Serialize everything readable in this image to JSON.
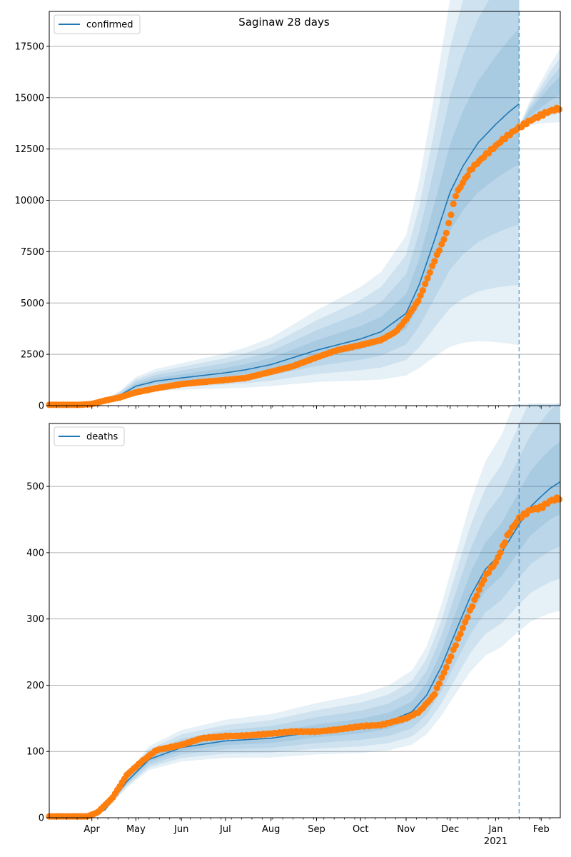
{
  "title": "Saginaw 28 days",
  "colors": {
    "model": "#1f77b4",
    "band": "#1f77b4",
    "observed": "#ff7f0e",
    "grid": "#b0b0b0",
    "forecast_line": "#1f77b4"
  },
  "x_axis": {
    "month_ticks": [
      {
        "date": "2020-04-01",
        "label": "Apr"
      },
      {
        "date": "2020-05-01",
        "label": "May"
      },
      {
        "date": "2020-06-01",
        "label": "Jun"
      },
      {
        "date": "2020-07-01",
        "label": "Jul"
      },
      {
        "date": "2020-08-01",
        "label": "Aug"
      },
      {
        "date": "2020-09-01",
        "label": "Sep"
      },
      {
        "date": "2020-10-01",
        "label": "Oct"
      },
      {
        "date": "2020-11-01",
        "label": "Nov"
      },
      {
        "date": "2020-12-01",
        "label": "Dec"
      },
      {
        "date": "2021-01-01",
        "label": "Jan",
        "sublabel": "2021"
      },
      {
        "date": "2021-02-01",
        "label": "Feb"
      }
    ],
    "minor_ticks": "weekly"
  },
  "chart_data": [
    {
      "type": "line",
      "legend": "confirmed",
      "legend_position": "top-left",
      "grid": "y",
      "xlim": [
        "2020-03-03",
        "2021-02-14"
      ],
      "ylim": [
        0,
        19200
      ],
      "yticks": [
        0,
        2500,
        5000,
        7500,
        10000,
        12500,
        15000,
        17500
      ],
      "ytick_labels": [
        "0",
        "2500",
        "5000",
        "7500",
        "10000",
        "12500",
        "15000",
        "17500"
      ],
      "forecast_date": "2021-01-17",
      "model": {
        "x": [
          "2020-03-03",
          "2020-03-24",
          "2020-04-05",
          "2020-04-20",
          "2020-05-01",
          "2020-05-15",
          "2020-06-01",
          "2020-07-01",
          "2020-07-15",
          "2020-08-01",
          "2020-09-01",
          "2020-10-01",
          "2020-10-15",
          "2020-11-01",
          "2020-11-10",
          "2020-11-20",
          "2020-12-01",
          "2020-12-10",
          "2020-12-20",
          "2021-01-01",
          "2021-01-10",
          "2021-01-17"
        ],
        "y": [
          0,
          0,
          60,
          500,
          950,
          1200,
          1350,
          1600,
          1750,
          2000,
          2700,
          3250,
          3600,
          4500,
          5900,
          8000,
          10400,
          11700,
          12800,
          13700,
          14300,
          14700
        ],
        "band_widths": [
          0.25,
          0.5,
          0.75,
          1.0
        ]
      },
      "forecast_band": {
        "x": [
          "2021-01-17",
          "2021-01-24",
          "2021-02-01",
          "2021-02-07",
          "2021-02-14"
        ],
        "lower": [
          13400,
          13650,
          13750,
          13780,
          13800
        ],
        "upper": [
          13600,
          14800,
          15800,
          16600,
          17400
        ]
      },
      "observed": {
        "x": [
          "2020-03-03",
          "2020-03-24",
          "2020-04-01",
          "2020-04-10",
          "2020-04-20",
          "2020-05-01",
          "2020-05-15",
          "2020-06-01",
          "2020-06-15",
          "2020-07-01",
          "2020-07-15",
          "2020-08-01",
          "2020-08-15",
          "2020-09-01",
          "2020-09-15",
          "2020-10-01",
          "2020-10-15",
          "2020-10-25",
          "2020-11-01",
          "2020-11-10",
          "2020-11-20",
          "2020-11-28",
          "2020-12-05",
          "2020-12-15",
          "2020-12-25",
          "2021-01-05",
          "2021-01-12",
          "2021-01-17",
          "2021-01-25",
          "2021-02-01",
          "2021-02-07",
          "2021-02-14"
        ],
        "y": [
          40,
          40,
          80,
          250,
          400,
          650,
          850,
          1050,
          1150,
          1250,
          1350,
          1650,
          1900,
          2350,
          2700,
          2950,
          3200,
          3600,
          4200,
          5200,
          7000,
          8300,
          10300,
          11500,
          12200,
          12900,
          13300,
          13550,
          13900,
          14150,
          14350,
          14500
        ]
      }
    },
    {
      "type": "line",
      "legend": "deaths",
      "legend_position": "top-left",
      "grid": "y",
      "xlim": [
        "2020-03-03",
        "2021-02-14"
      ],
      "ylim": [
        0,
        595
      ],
      "yticks": [
        0,
        100,
        200,
        300,
        400,
        500
      ],
      "ytick_labels": [
        "0",
        "100",
        "200",
        "300",
        "400",
        "500"
      ],
      "forecast_date": "2021-01-17",
      "model": {
        "x": [
          "2020-03-03",
          "2020-03-29",
          "2020-04-10",
          "2020-04-25",
          "2020-05-10",
          "2020-06-01",
          "2020-07-01",
          "2020-08-01",
          "2020-09-01",
          "2020-10-01",
          "2020-10-20",
          "2020-11-05",
          "2020-11-15",
          "2020-11-25",
          "2020-12-05",
          "2020-12-15",
          "2020-12-25",
          "2021-01-05",
          "2021-01-17",
          "2021-01-25",
          "2021-02-01",
          "2021-02-07",
          "2021-02-14"
        ],
        "y": [
          0,
          0,
          12,
          55,
          88,
          106,
          116,
          120,
          130,
          137,
          145,
          160,
          185,
          228,
          282,
          335,
          375,
          400,
          443,
          470,
          485,
          497,
          507
        ],
        "band_widths": [
          0.12,
          0.24,
          0.36,
          0.48
        ]
      },
      "observed": {
        "x": [
          "2020-03-03",
          "2020-03-29",
          "2020-04-05",
          "2020-04-15",
          "2020-04-25",
          "2020-05-05",
          "2020-05-15",
          "2020-06-01",
          "2020-06-15",
          "2020-07-01",
          "2020-07-15",
          "2020-08-01",
          "2020-08-15",
          "2020-09-01",
          "2020-09-15",
          "2020-10-01",
          "2020-10-15",
          "2020-11-01",
          "2020-11-10",
          "2020-11-20",
          "2020-11-28",
          "2020-12-05",
          "2020-12-15",
          "2020-12-25",
          "2021-01-01",
          "2021-01-10",
          "2021-01-17",
          "2021-01-25",
          "2021-02-01",
          "2021-02-07",
          "2021-02-14"
        ],
        "y": [
          2,
          2,
          8,
          30,
          65,
          85,
          102,
          110,
          120,
          123,
          124,
          127,
          130,
          130,
          133,
          138,
          140,
          150,
          160,
          185,
          225,
          262,
          315,
          365,
          385,
          430,
          452,
          465,
          468,
          478,
          483
        ]
      }
    }
  ]
}
